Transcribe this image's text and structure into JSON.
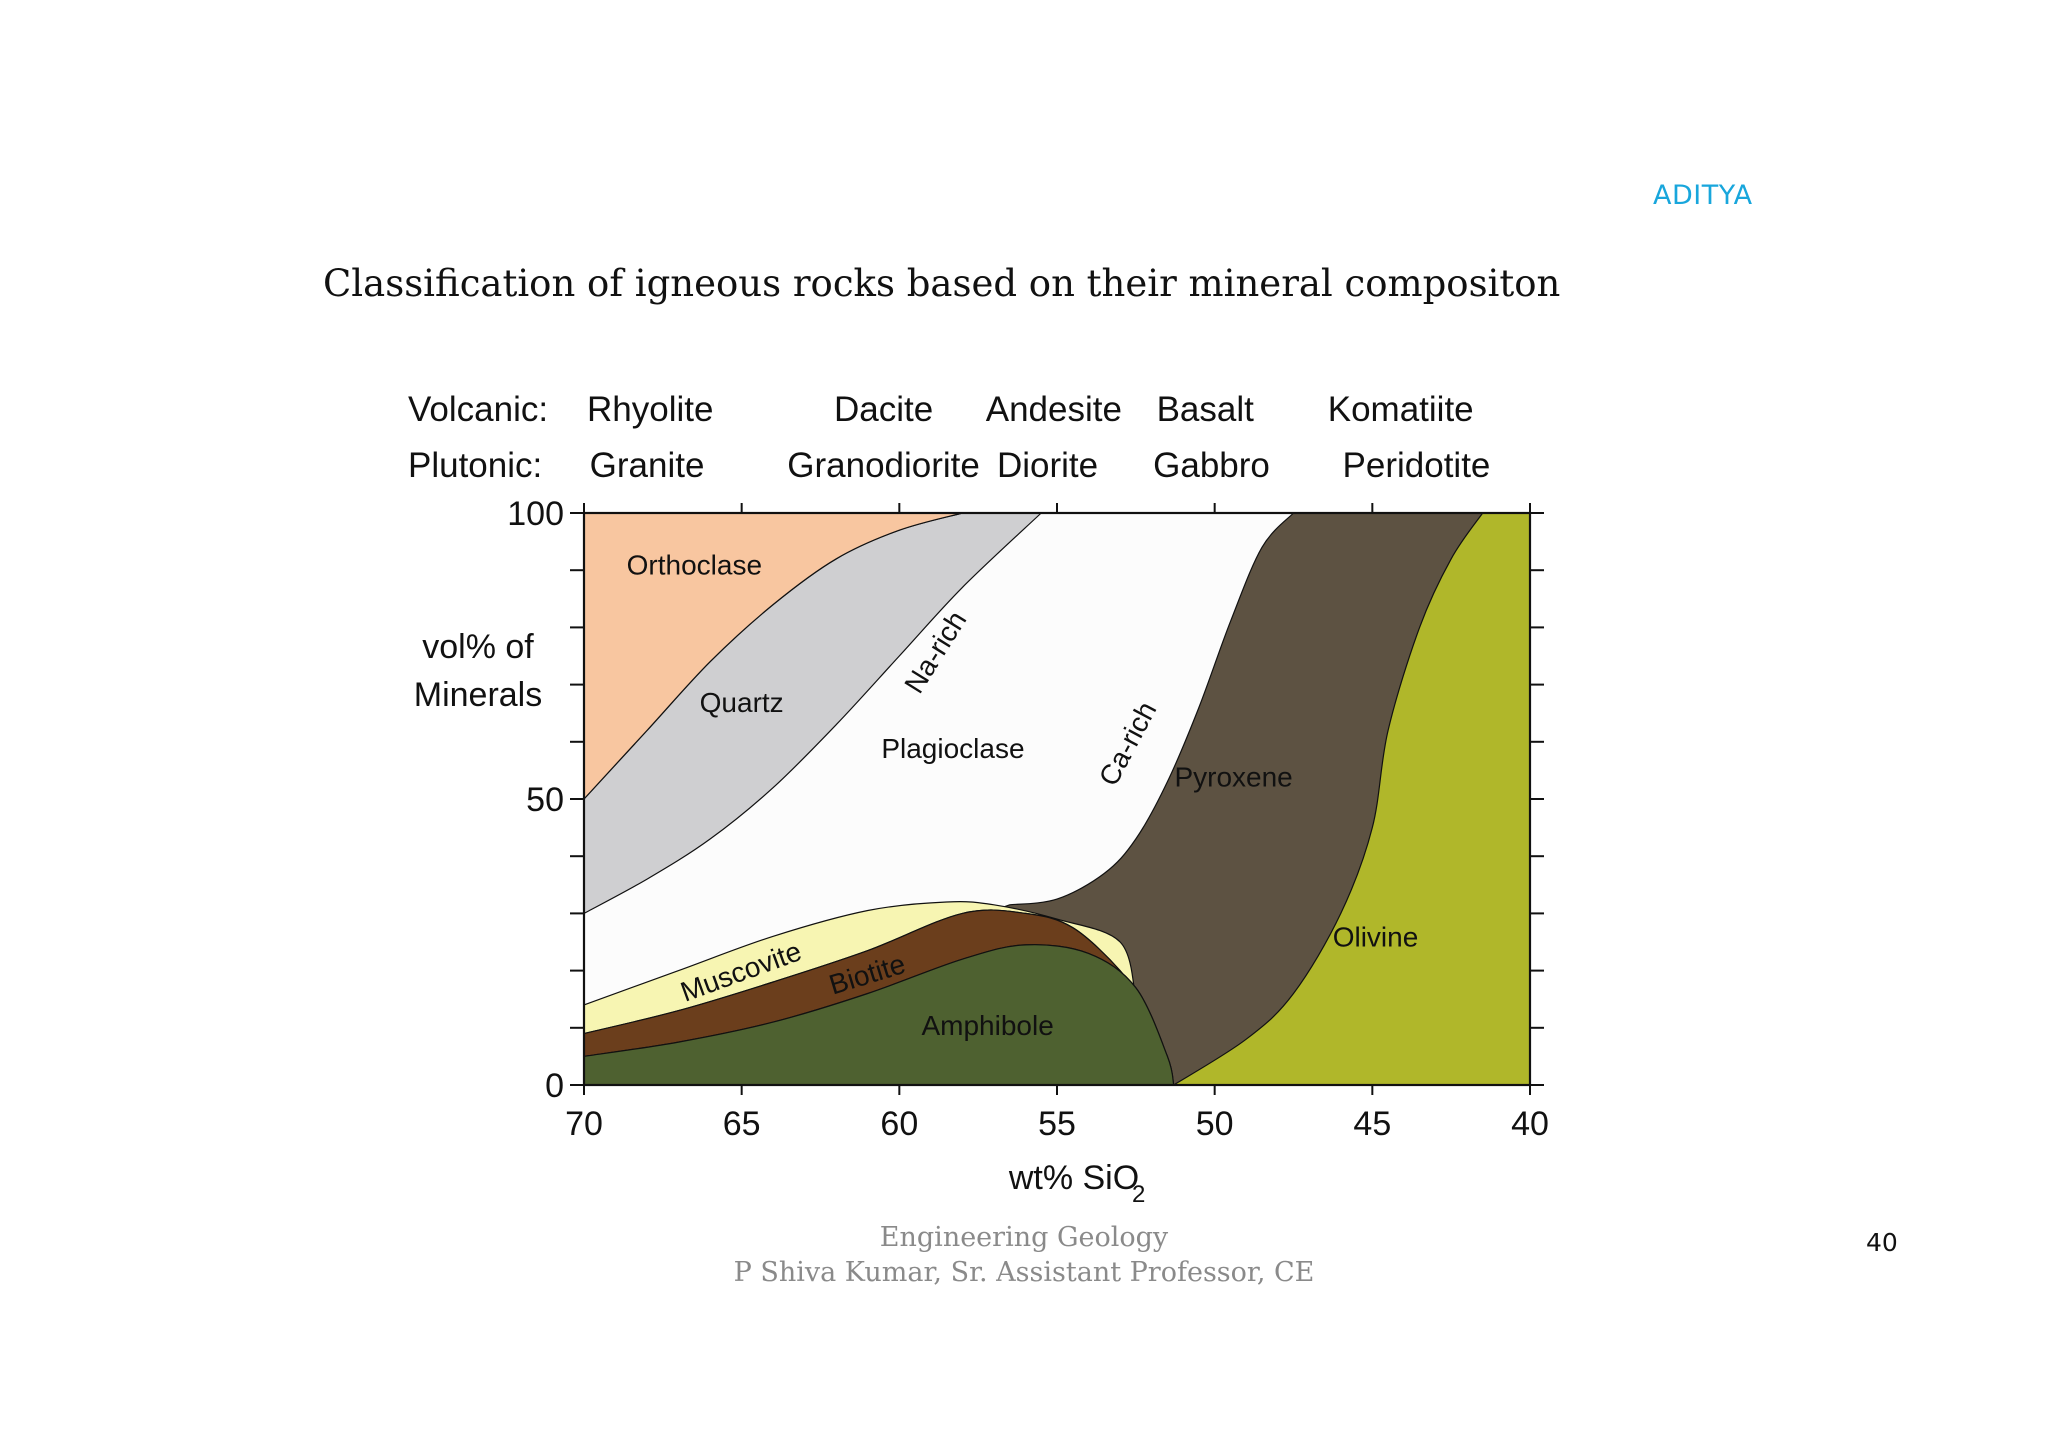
{
  "header": {
    "brand": "ADITYA"
  },
  "slide": {
    "title": "Classification of igneous rocks based on their mineral compositon",
    "number": "40"
  },
  "footer": {
    "line1": "Engineering Geology",
    "line2": "P Shiva Kumar, Sr. Assistant  Professor, CE"
  },
  "colors": {
    "orthoclase": "#f8c6a0",
    "quartz": "#cfcfd1",
    "plagioclase": "#fcfcfc",
    "muscovite": "#f7f5b2",
    "biotite": "#6b3e1c",
    "amphibole": "#4e6130",
    "pyroxene": "#5d5242",
    "olivine": "#b0b72a"
  },
  "chart_data": {
    "type": "area",
    "xlabel": "wt% SiO",
    "xlabel_subscript": "2",
    "ylabel_line1": "vol% of",
    "ylabel_line2": "Minerals",
    "xlim": [
      70,
      40
    ],
    "ylim": [
      0,
      100
    ],
    "x_tick_labels": [
      "70",
      "65",
      "60",
      "55",
      "50",
      "45",
      "40"
    ],
    "y_tick_labels": [
      "0",
      "50",
      "100"
    ],
    "rock_names": {
      "volcanic_label": "Volcanic:",
      "plutonic_label": "Plutonic:",
      "volcanic": [
        {
          "name": "Rhyolite",
          "sio2": 67.9
        },
        {
          "name": "Dacite",
          "sio2": 60.5
        },
        {
          "name": "Andesite",
          "sio2": 55.1
        },
        {
          "name": "Basalt",
          "sio2": 50.3
        },
        {
          "name": "Komatiite",
          "sio2": 44.1
        }
      ],
      "plutonic": [
        {
          "name": "Granite",
          "sio2": 68.0
        },
        {
          "name": "Granodiorite",
          "sio2": 60.5
        },
        {
          "name": "Diorite",
          "sio2": 55.3
        },
        {
          "name": "Gabbro",
          "sio2": 50.1
        },
        {
          "name": "Peridotite",
          "sio2": 43.6
        }
      ]
    },
    "boundaries": {
      "amphibole_top": [
        [
          70,
          5
        ],
        [
          67,
          7.5
        ],
        [
          64,
          11
        ],
        [
          61,
          16
        ],
        [
          58,
          22
        ],
        [
          56,
          24.5
        ],
        [
          54,
          23
        ],
        [
          52.5,
          17
        ],
        [
          51.5,
          5
        ],
        [
          51.3,
          0
        ]
      ],
      "biotite_top": [
        [
          70,
          9
        ],
        [
          67,
          13
        ],
        [
          64,
          18
        ],
        [
          61,
          23.5
        ],
        [
          58,
          30
        ],
        [
          56,
          30
        ],
        [
          54.5,
          27.5
        ],
        [
          53,
          20
        ],
        [
          52.5,
          15
        ]
      ],
      "muscovite_top": [
        [
          70,
          14
        ],
        [
          67,
          20
        ],
        [
          64,
          26
        ],
        [
          61,
          30.5
        ],
        [
          58.5,
          32
        ],
        [
          57,
          31.5
        ],
        [
          55,
          29
        ],
        [
          53,
          25
        ],
        [
          52.5,
          15
        ]
      ],
      "pyroxene_left": [
        [
          56.5,
          31.5
        ],
        [
          55,
          32.5
        ],
        [
          53.5,
          37
        ],
        [
          52.5,
          43
        ],
        [
          51.5,
          53
        ],
        [
          50.5,
          66
        ],
        [
          49.5,
          81
        ],
        [
          48.5,
          94
        ],
        [
          47.5,
          100
        ]
      ],
      "olivine_left": [
        [
          51.3,
          0
        ],
        [
          49,
          8
        ],
        [
          47.5,
          16
        ],
        [
          46,
          30
        ],
        [
          45,
          45
        ],
        [
          44.5,
          62
        ],
        [
          43.5,
          80
        ],
        [
          42.5,
          92
        ],
        [
          41.5,
          100
        ]
      ],
      "quartz_bottom": [
        [
          70,
          30
        ],
        [
          68,
          36
        ],
        [
          66,
          43
        ],
        [
          64,
          52
        ],
        [
          62,
          63
        ],
        [
          60,
          75
        ],
        [
          58,
          87
        ],
        [
          55.5,
          100
        ]
      ],
      "orthoclase_bottom": [
        [
          70,
          50
        ],
        [
          68,
          62
        ],
        [
          66,
          74
        ],
        [
          64,
          84
        ],
        [
          62,
          92
        ],
        [
          60,
          97
        ],
        [
          58,
          100
        ]
      ]
    },
    "mineral_labels": [
      {
        "name": "Orthoclase",
        "x": 66.5,
        "y": 90.5,
        "rotate": 0
      },
      {
        "name": "Quartz",
        "x": 65.0,
        "y": 66.5,
        "rotate": 0
      },
      {
        "name": "Na-rich",
        "x": 58.8,
        "y": 75.5,
        "rotate": -58
      },
      {
        "name": "Plagioclase",
        "x": 58.3,
        "y": 58.5,
        "rotate": 0
      },
      {
        "name": "Ca-rich",
        "x": 52.7,
        "y": 59.5,
        "rotate": -62
      },
      {
        "name": "Pyroxene",
        "x": 49.4,
        "y": 53.5,
        "rotate": 0
      },
      {
        "name": "Olivine",
        "x": 44.9,
        "y": 25.5,
        "rotate": 0
      },
      {
        "name": "Muscovite",
        "x": 65.0,
        "y": 19.5,
        "rotate": -20
      },
      {
        "name": "Biotite",
        "x": 61.0,
        "y": 19.0,
        "rotate": -17
      },
      {
        "name": "Amphibole",
        "x": 57.2,
        "y": 10.0,
        "rotate": 0
      }
    ]
  }
}
